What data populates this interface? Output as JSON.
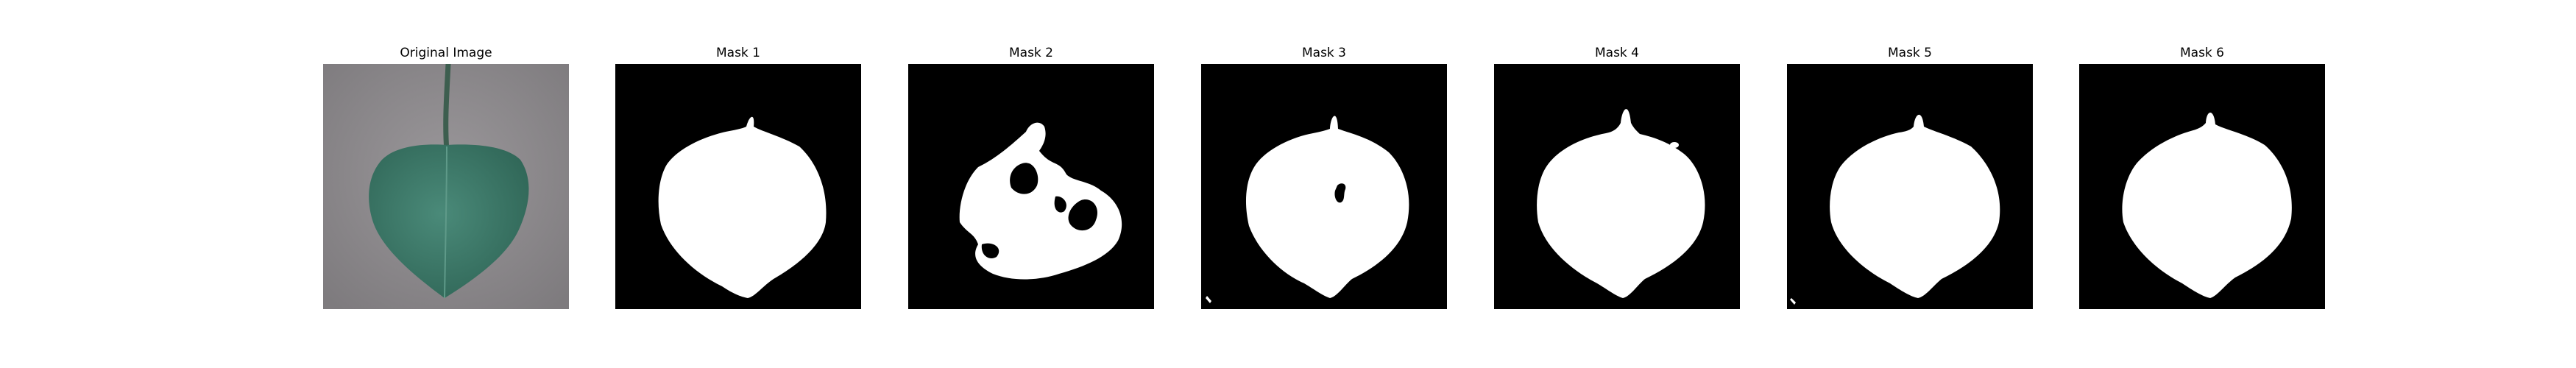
{
  "figure": {
    "panels": [
      {
        "title": "Original Image"
      },
      {
        "title": "Mask 1"
      },
      {
        "title": "Mask 2"
      },
      {
        "title": "Mask 3"
      },
      {
        "title": "Mask 4"
      },
      {
        "title": "Mask 5"
      },
      {
        "title": "Mask 6"
      }
    ]
  },
  "colors": {
    "mask_background": "#000000",
    "mask_foreground": "#ffffff",
    "photo_background": "#8f8c8f",
    "leaf_color": "#3f7a6a",
    "stem_color": "#3d5e4f"
  }
}
